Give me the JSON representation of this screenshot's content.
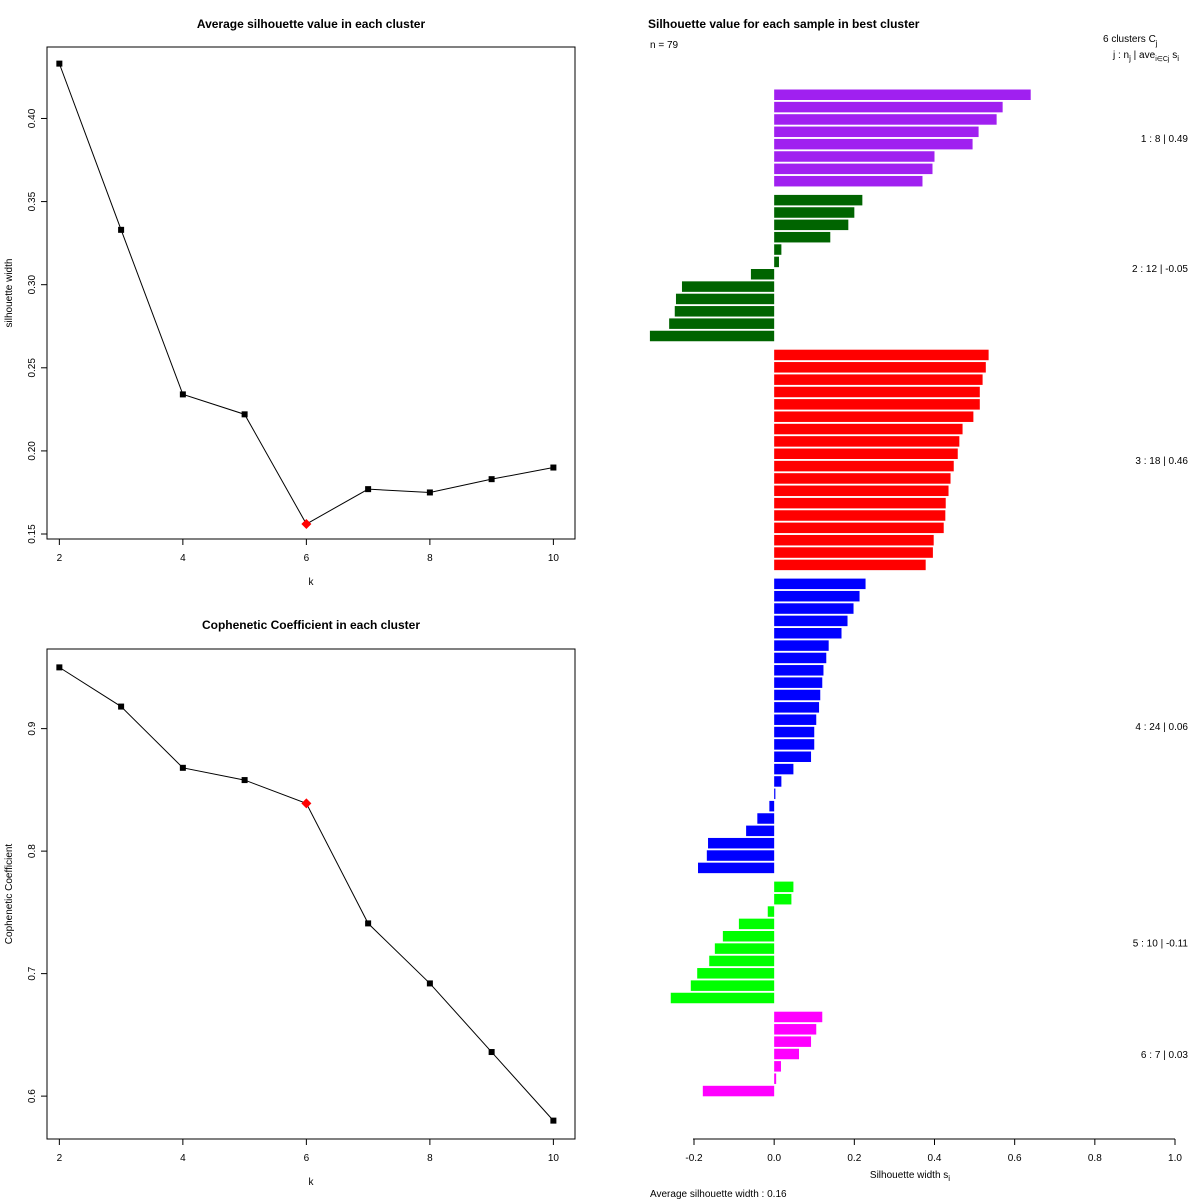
{
  "chart_data": [
    {
      "type": "line",
      "title": "Average silhouette value in each cluster",
      "xlabel": "k",
      "ylabel": "silhouette width",
      "x": [
        2,
        3,
        4,
        5,
        6,
        7,
        8,
        9,
        10
      ],
      "values": [
        0.433,
        0.333,
        0.234,
        0.222,
        0.156,
        0.177,
        0.175,
        0.183,
        0.19
      ],
      "highlight_index": 4,
      "highlight_color": "#ff0000",
      "xlim": [
        1.8,
        10.35
      ],
      "ylim": [
        0.147,
        0.443
      ],
      "xticks": [
        2,
        4,
        6,
        8,
        10
      ],
      "yticks": [
        0.15,
        0.2,
        0.25,
        0.3,
        0.35,
        0.4
      ],
      "ytick_labels": [
        "0.15",
        "0.20",
        "0.25",
        "0.30",
        "0.35",
        "0.40"
      ]
    },
    {
      "type": "line",
      "title": "Cophenetic Coefficient in each cluster",
      "xlabel": "k",
      "ylabel": "Cophenetic Coefficient",
      "x": [
        2,
        3,
        4,
        5,
        6,
        7,
        8,
        9,
        10
      ],
      "values": [
        0.95,
        0.918,
        0.868,
        0.858,
        0.839,
        0.741,
        0.692,
        0.636,
        0.58
      ],
      "highlight_index": 4,
      "highlight_color": "#ff0000",
      "xlim": [
        1.8,
        10.35
      ],
      "ylim": [
        0.565,
        0.965
      ],
      "xticks": [
        2,
        4,
        6,
        8,
        10
      ],
      "yticks": [
        0.6,
        0.7,
        0.8,
        0.9
      ],
      "ytick_labels": [
        "0.6",
        "0.7",
        "0.8",
        "0.9"
      ]
    },
    {
      "type": "bar",
      "orientation": "horizontal",
      "title": "Silhouette value for each sample in best cluster",
      "n_label": "n = 79",
      "header_line1": "6  clusters  C",
      "header_line1_sub": "j",
      "header_line2": "j :  n",
      "header_line2_sub1": "j",
      "header_line2_mid": " | ave",
      "header_line2_sub2": "i∈Cj",
      "header_line2_end": " s",
      "header_line2_sub3": "i",
      "xlabel": "Silhouette width s",
      "xlabel_sub": "i",
      "footer": "Average silhouette width :  0.16",
      "xlim": [
        -0.2,
        1.0
      ],
      "xticks": [
        -0.2,
        0.0,
        0.2,
        0.4,
        0.6,
        0.8,
        1.0
      ],
      "xtick_labels": [
        "-0.2",
        "0.0",
        "0.2",
        "0.4",
        "0.6",
        "0.8",
        "1.0"
      ],
      "clusters": [
        {
          "label": "1 :   8  | 0.49",
          "color": "#a020f0",
          "values": [
            0.64,
            0.57,
            0.555,
            0.51,
            0.495,
            0.4,
            0.395,
            0.37
          ]
        },
        {
          "label": "2 :   12  | -0.05",
          "color": "#006400",
          "values": [
            0.22,
            0.2,
            0.185,
            0.14,
            0.018,
            0.012,
            -0.058,
            -0.23,
            -0.245,
            -0.248,
            -0.262,
            -0.31
          ]
        },
        {
          "label": "3 :   18  | 0.46",
          "color": "#ff0000",
          "values": [
            0.535,
            0.528,
            0.52,
            0.513,
            0.513,
            0.497,
            0.47,
            0.462,
            0.458,
            0.448,
            0.44,
            0.435,
            0.428,
            0.427,
            0.423,
            0.398,
            0.396,
            0.378
          ]
        },
        {
          "label": "4 :   24  | 0.06",
          "color": "#0000ff",
          "values": [
            0.228,
            0.213,
            0.198,
            0.183,
            0.168,
            0.136,
            0.13,
            0.123,
            0.12,
            0.115,
            0.112,
            0.105,
            0.1,
            0.1,
            0.092,
            0.048,
            0.018,
            0.003,
            -0.012,
            -0.042,
            -0.07,
            -0.165,
            -0.168,
            -0.19
          ]
        },
        {
          "label": "5 :   10  | -0.11",
          "color": "#00ff00",
          "values": [
            0.048,
            0.043,
            -0.016,
            -0.088,
            -0.128,
            -0.148,
            -0.162,
            -0.192,
            -0.208,
            -0.258
          ]
        },
        {
          "label": "6 :   7  | 0.03",
          "color": "#ff00ff",
          "values": [
            0.12,
            0.105,
            0.092,
            0.062,
            0.017,
            0.005,
            -0.178
          ]
        }
      ]
    }
  ]
}
